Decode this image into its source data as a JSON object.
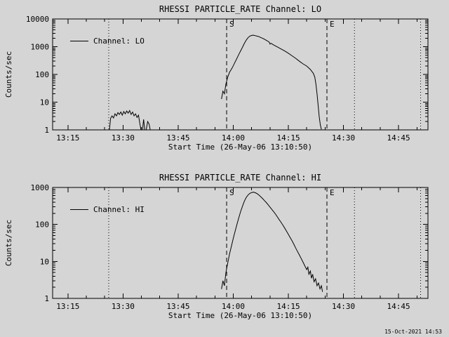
{
  "footer": {
    "timestamp": "15-Oct-2021 14:53"
  },
  "chart_data": [
    {
      "type": "line",
      "title": "RHESSI PARTICLE_RATE Channel: LO",
      "ylabel": "Counts/sec",
      "xlabel": "Start Time (26-May-06 13:10:50)",
      "legend": "Channel: LO",
      "x_unit": "minutes after 13:00 UT",
      "xlim": [
        10.83,
        113
      ],
      "ylim": [
        1,
        10000
      ],
      "grid": false,
      "legend_position": "upper-left-inside",
      "yticks": [
        1,
        10,
        100,
        1000,
        10000
      ],
      "xticks": [
        {
          "t": 15,
          "label": "13:15"
        },
        {
          "t": 30,
          "label": "13:30"
        },
        {
          "t": 45,
          "label": "13:45"
        },
        {
          "t": 60,
          "label": "14:00"
        },
        {
          "t": 75,
          "label": "14:15"
        },
        {
          "t": 90,
          "label": "14:30"
        },
        {
          "t": 105,
          "label": "14:45"
        }
      ],
      "xminor": [
        20,
        25,
        35,
        40,
        50,
        55,
        65,
        70,
        80,
        85,
        95,
        100,
        110
      ],
      "dashed_markers": [
        {
          "t": 58.2,
          "label": "S"
        },
        {
          "t": 85.5,
          "label": "E"
        }
      ],
      "dotted_markers": [
        26.1,
        93,
        111
      ],
      "series": [
        {
          "id": "lo",
          "name": "Channel: LO",
          "segments": [
            [
              [
                26.3,
                1.0
              ],
              [
                26.6,
                2.6
              ],
              [
                27.0,
                3.2
              ],
              [
                27.4,
                2.7
              ],
              [
                27.8,
                3.8
              ],
              [
                28.2,
                3.2
              ],
              [
                28.6,
                4.2
              ],
              [
                29.0,
                3.6
              ],
              [
                29.4,
                4.4
              ],
              [
                29.8,
                3.4
              ],
              [
                30.2,
                4.6
              ],
              [
                30.6,
                3.8
              ],
              [
                31.0,
                4.8
              ],
              [
                31.4,
                4.0
              ],
              [
                31.8,
                5.0
              ],
              [
                32.2,
                3.6
              ],
              [
                32.6,
                4.4
              ],
              [
                33.0,
                3.2
              ],
              [
                33.4,
                3.8
              ],
              [
                33.8,
                2.8
              ],
              [
                34.2,
                3.4
              ],
              [
                34.6,
                1.6
              ],
              [
                34.9,
                1.0
              ],
              [
                35.3,
                1.0
              ],
              [
                35.6,
                2.4
              ],
              [
                35.9,
                1.0
              ],
              [
                36.3,
                1.0
              ],
              [
                36.7,
                2.0
              ],
              [
                37.1,
                1.6
              ],
              [
                37.4,
                1.0
              ]
            ],
            [
              [
                56.8,
                13
              ],
              [
                57.2,
                25
              ],
              [
                57.6,
                20
              ],
              [
                58.0,
                45
              ],
              [
                58.5,
                80
              ],
              [
                59,
                120
              ],
              [
                59.5,
                155
              ],
              [
                60,
                205
              ],
              [
                60.5,
                280
              ],
              [
                61,
                380
              ],
              [
                61.5,
                520
              ],
              [
                62,
                700
              ],
              [
                62.5,
                950
              ],
              [
                63,
                1300
              ],
              [
                63.5,
                1700
              ],
              [
                64,
                2100
              ],
              [
                64.5,
                2400
              ],
              [
                65,
                2550
              ],
              [
                65.5,
                2600
              ],
              [
                66,
                2500
              ],
              [
                66.5,
                2400
              ],
              [
                67,
                2300
              ],
              [
                67.5,
                2150
              ],
              [
                68,
                2000
              ],
              [
                68.5,
                1850
              ],
              [
                69,
                1700
              ],
              [
                69.5,
                1550
              ],
              [
                69.8,
                1450
              ],
              [
                70,
                1250
              ],
              [
                70.3,
                1320
              ],
              [
                71,
                1150
              ],
              [
                72,
                980
              ],
              [
                73,
                830
              ],
              [
                74,
                700
              ],
              [
                75,
                580
              ],
              [
                76,
                470
              ],
              [
                77,
                380
              ],
              [
                78,
                300
              ],
              [
                79,
                240
              ],
              [
                80,
                200
              ],
              [
                81,
                150
              ],
              [
                81.8,
                110
              ],
              [
                82.2,
                80
              ],
              [
                82.5,
                45
              ],
              [
                82.8,
                20
              ],
              [
                83.1,
                8
              ],
              [
                83.4,
                3
              ],
              [
                83.7,
                1.5
              ],
              [
                84,
                1.05
              ]
            ]
          ]
        }
      ]
    },
    {
      "type": "line",
      "title": "RHESSI PARTICLE_RATE Channel: HI",
      "ylabel": "Counts/sec",
      "xlabel": "Start Time (26-May-06 13:10:50)",
      "legend": "Channel: HI",
      "x_unit": "minutes after 13:00 UT",
      "xlim": [
        10.83,
        113
      ],
      "ylim": [
        1,
        1000
      ],
      "grid": false,
      "legend_position": "upper-left-inside",
      "yticks": [
        1,
        10,
        100,
        1000
      ],
      "xticks": [
        {
          "t": 15,
          "label": "13:15"
        },
        {
          "t": 30,
          "label": "13:30"
        },
        {
          "t": 45,
          "label": "13:45"
        },
        {
          "t": 60,
          "label": "14:00"
        },
        {
          "t": 75,
          "label": "14:15"
        },
        {
          "t": 90,
          "label": "14:30"
        },
        {
          "t": 105,
          "label": "14:45"
        }
      ],
      "xminor": [
        20,
        25,
        35,
        40,
        50,
        55,
        65,
        70,
        80,
        85,
        95,
        100,
        110
      ],
      "dashed_markers": [
        {
          "t": 58.2,
          "label": "S"
        },
        {
          "t": 85.5,
          "label": "E"
        }
      ],
      "dotted_markers": [
        26.1,
        93,
        111
      ],
      "series": [
        {
          "id": "hi",
          "name": "Channel: HI",
          "segments": [
            [
              [
                56.8,
                1.8
              ],
              [
                57.2,
                3
              ],
              [
                57.6,
                2.2
              ],
              [
                58,
                5
              ],
              [
                58.5,
                9
              ],
              [
                59,
                16
              ],
              [
                59.5,
                26
              ],
              [
                60,
                42
              ],
              [
                60.5,
                65
              ],
              [
                61,
                100
              ],
              [
                61.5,
                150
              ],
              [
                62,
                220
              ],
              [
                62.5,
                310
              ],
              [
                63,
                420
              ],
              [
                63.5,
                530
              ],
              [
                64,
                620
              ],
              [
                64.5,
                690
              ],
              [
                65,
                730
              ],
              [
                65.5,
                745
              ],
              [
                66,
                720
              ],
              [
                66.5,
                680
              ],
              [
                67,
                620
              ],
              [
                67.5,
                560
              ],
              [
                68,
                500
              ],
              [
                68.5,
                440
              ],
              [
                69,
                390
              ],
              [
                69.5,
                340
              ],
              [
                70,
                295
              ],
              [
                70.5,
                255
              ],
              [
                71,
                220
              ],
              [
                71.5,
                190
              ],
              [
                72,
                160
              ],
              [
                72.5,
                135
              ],
              [
                73,
                115
              ],
              [
                73.5,
                96
              ],
              [
                74,
                80
              ],
              [
                74.5,
                66
              ],
              [
                75,
                54
              ],
              [
                75.5,
                44
              ],
              [
                76,
                36
              ],
              [
                76.5,
                29
              ],
              [
                77,
                23
              ],
              [
                77.5,
                18.5
              ],
              [
                78,
                15
              ],
              [
                78.5,
                12
              ],
              [
                79,
                9.5
              ],
              [
                79.5,
                7.5
              ],
              [
                80,
                6
              ],
              [
                80.3,
                7
              ],
              [
                80.6,
                4.5
              ],
              [
                81,
                5.5
              ],
              [
                81.3,
                3.5
              ],
              [
                81.6,
                4.5
              ],
              [
                82,
                2.8
              ],
              [
                82.4,
                3.4
              ],
              [
                82.8,
                2.2
              ],
              [
                83.2,
                2.6
              ],
              [
                83.6,
                1.8
              ],
              [
                84,
                2.2
              ],
              [
                84.3,
                1.5
              ]
            ]
          ]
        }
      ]
    }
  ]
}
